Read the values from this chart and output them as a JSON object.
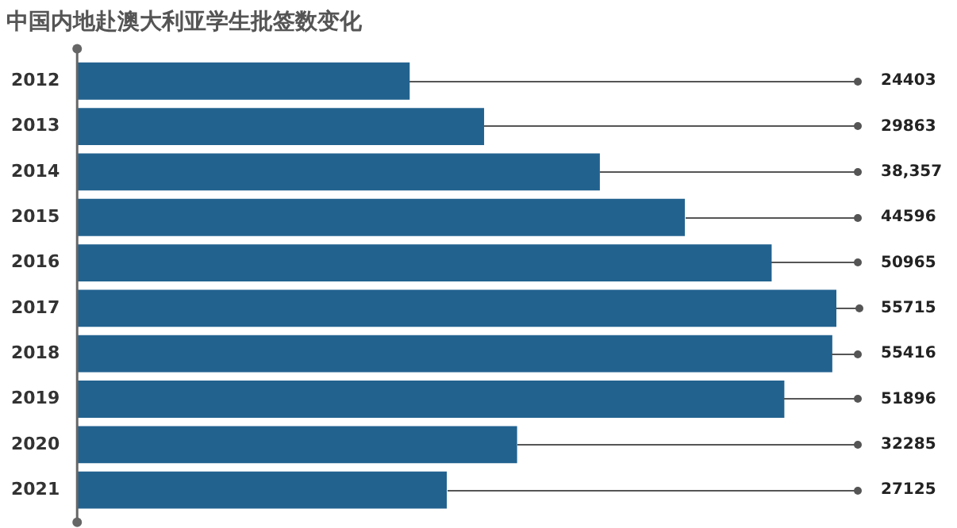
{
  "chart_data": {
    "type": "bar",
    "orientation": "horizontal",
    "title": "中国内地赴澳大利亚学生批签数变化",
    "categories": [
      "2012",
      "2013",
      "2014",
      "2015",
      "2016",
      "2017",
      "2018",
      "2019",
      "2020",
      "2021"
    ],
    "values": [
      24403,
      29863,
      38357,
      44596,
      50965,
      55715,
      55416,
      51896,
      32285,
      27125
    ],
    "value_labels": [
      "24403",
      "29863",
      "38,357",
      "44596",
      "50965",
      "55715",
      "55416",
      "51896",
      "32285",
      "27125"
    ],
    "color": "#22628f",
    "legend": false,
    "grid": false
  }
}
